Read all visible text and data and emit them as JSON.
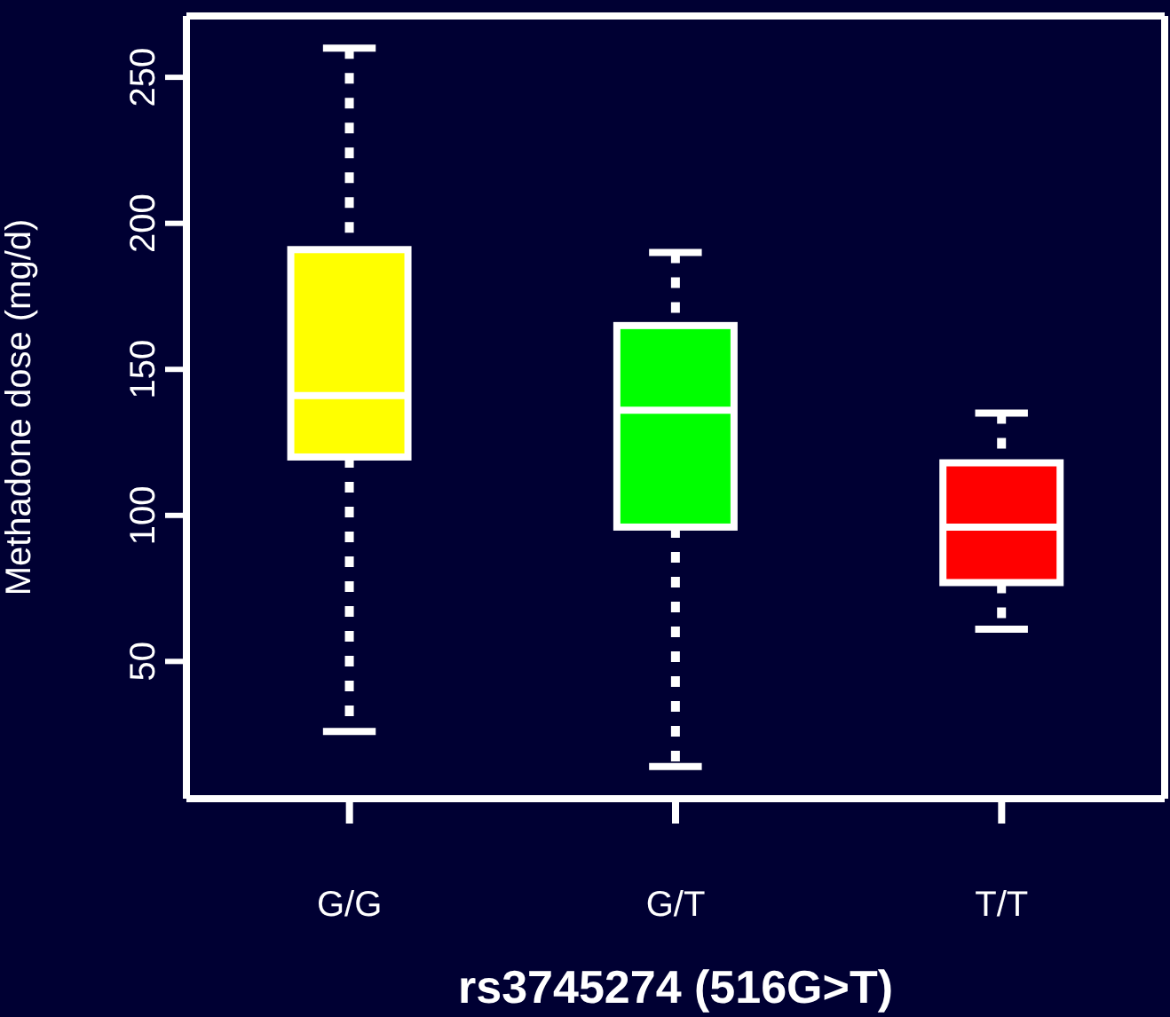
{
  "chart_data": {
    "type": "box",
    "xlabel": "rs3745274 (516G>T)",
    "ylabel": "Methadone dose (mg/d)",
    "categories": [
      "G/G",
      "G/T",
      "T/T"
    ],
    "colors": [
      "#ffff00",
      "#00ff00",
      "#ff0000"
    ],
    "boxes": [
      {
        "low": 26,
        "q1": 120,
        "median": 141,
        "q3": 191,
        "high": 260
      },
      {
        "low": 14,
        "q1": 96,
        "median": 136,
        "q3": 165,
        "high": 190
      },
      {
        "low": 61,
        "q1": 77,
        "median": 96,
        "q3": 118,
        "high": 135
      }
    ],
    "ylim": [
      3,
      271
    ],
    "yticks": [
      50,
      100,
      150,
      200,
      250
    ],
    "grid": false,
    "legend": false
  }
}
